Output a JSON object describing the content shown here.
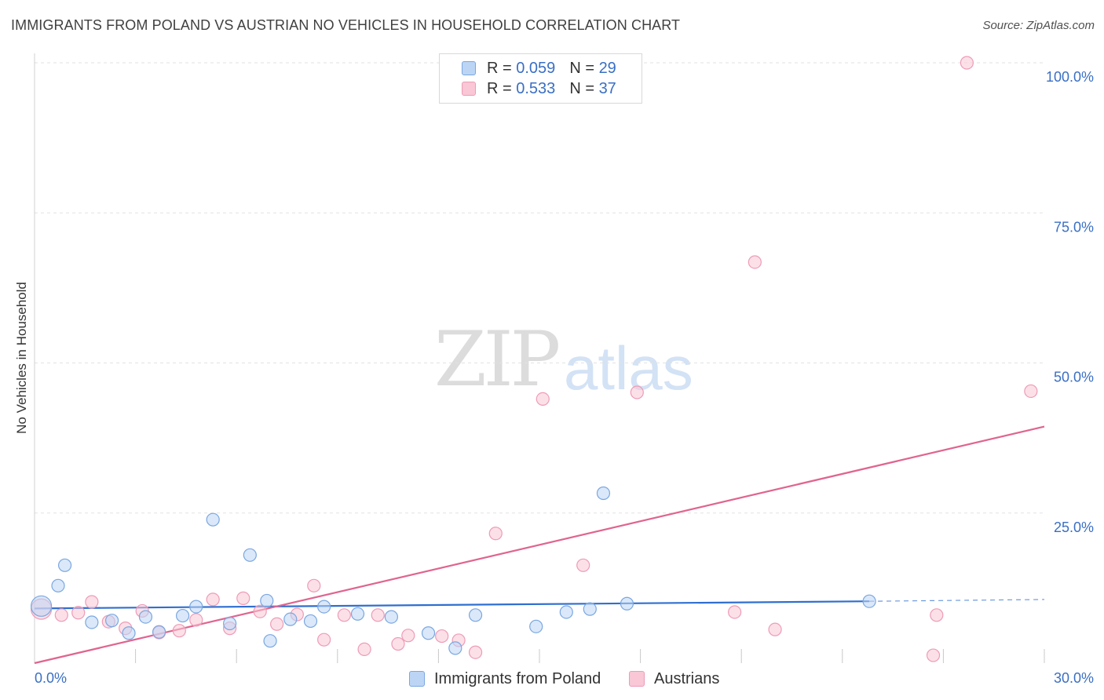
{
  "title": "IMMIGRANTS FROM POLAND VS AUSTRIAN NO VEHICLES IN HOUSEHOLD CORRELATION CHART",
  "source": "Source: ZipAtlas.com",
  "watermark": {
    "zip": "ZIP",
    "atlas": "atlas"
  },
  "legend_top": [
    {
      "r_label": "R =",
      "r_value": "0.059",
      "n_label": "N =",
      "n_value": "29"
    },
    {
      "r_label": "R =",
      "r_value": "0.533",
      "n_label": "N =",
      "n_value": "37"
    }
  ],
  "legend_bottom": [
    "Immigrants from Poland",
    "Austrians"
  ],
  "colors": {
    "poland_fill": "#bcd5f5",
    "poland_stroke": "#7aa7e0",
    "poland_line": "#2f6fd0",
    "austria_fill": "#f9c7d6",
    "austria_stroke": "#ee9bb6",
    "austria_line": "#e0648f",
    "tick_label": "#3a6fc4",
    "grid": "#e2e2e2"
  },
  "chart_data": {
    "type": "scatter",
    "title": "IMMIGRANTS FROM POLAND VS AUSTRIAN NO VEHICLES IN HOUSEHOLD CORRELATION CHART",
    "xlabel": "",
    "ylabel": "No Vehicles in Household",
    "xlim": [
      0,
      30
    ],
    "ylim": [
      0,
      100
    ],
    "x_tick_labels": [
      "0.0%",
      "30.0%"
    ],
    "y_ticks": [
      25,
      50,
      75,
      100
    ],
    "y_tick_labels": [
      "25.0%",
      "50.0%",
      "75.0%",
      "100.0%"
    ],
    "grid": true,
    "legend_position": "top-center",
    "series": [
      {
        "name": "Immigrants from Poland",
        "color": "#bcd5f5",
        "points": [
          [
            0.2,
            9.5
          ],
          [
            0.7,
            12.9
          ],
          [
            0.9,
            16.3
          ],
          [
            1.7,
            6.8
          ],
          [
            2.3,
            7.1
          ],
          [
            2.8,
            5.0
          ],
          [
            3.3,
            7.7
          ],
          [
            3.7,
            5.2
          ],
          [
            4.4,
            7.9
          ],
          [
            4.8,
            9.4
          ],
          [
            5.3,
            23.9
          ],
          [
            5.8,
            6.6
          ],
          [
            6.4,
            18.0
          ],
          [
            6.9,
            10.4
          ],
          [
            7.0,
            3.7
          ],
          [
            7.6,
            7.3
          ],
          [
            8.2,
            7.0
          ],
          [
            8.6,
            9.4
          ],
          [
            9.6,
            8.2
          ],
          [
            10.6,
            7.7
          ],
          [
            11.7,
            5.0
          ],
          [
            12.5,
            2.5
          ],
          [
            13.1,
            8.0
          ],
          [
            14.9,
            6.1
          ],
          [
            15.8,
            8.5
          ],
          [
            16.5,
            9.0
          ],
          [
            16.9,
            28.3
          ],
          [
            17.6,
            9.9
          ],
          [
            24.8,
            10.3
          ]
        ],
        "trend": {
          "x": [
            0,
            24.8
          ],
          "y": [
            9.1,
            10.3
          ],
          "dashed_extension_to": [
            30,
            10.6
          ]
        }
      },
      {
        "name": "Austrians",
        "color": "#f9c7d6",
        "points": [
          [
            0.2,
            9.0
          ],
          [
            0.8,
            8.0
          ],
          [
            1.3,
            8.4
          ],
          [
            1.7,
            10.2
          ],
          [
            2.2,
            6.9
          ],
          [
            2.7,
            5.8
          ],
          [
            3.2,
            8.7
          ],
          [
            3.7,
            5.1
          ],
          [
            4.3,
            5.4
          ],
          [
            4.8,
            7.2
          ],
          [
            5.3,
            10.6
          ],
          [
            5.8,
            5.8
          ],
          [
            6.2,
            10.8
          ],
          [
            6.7,
            8.6
          ],
          [
            7.2,
            6.5
          ],
          [
            7.8,
            8.1
          ],
          [
            8.3,
            12.9
          ],
          [
            8.6,
            3.9
          ],
          [
            9.2,
            8.0
          ],
          [
            9.8,
            2.3
          ],
          [
            10.2,
            8.0
          ],
          [
            10.8,
            3.2
          ],
          [
            11.1,
            4.6
          ],
          [
            12.1,
            4.5
          ],
          [
            12.6,
            3.8
          ],
          [
            13.1,
            1.8
          ],
          [
            13.7,
            21.6
          ],
          [
            15.1,
            44.0
          ],
          [
            16.3,
            16.3
          ],
          [
            17.9,
            45.1
          ],
          [
            20.8,
            8.5
          ],
          [
            21.4,
            66.8
          ],
          [
            22.0,
            5.6
          ],
          [
            26.7,
            1.3
          ],
          [
            26.8,
            8.0
          ],
          [
            27.7,
            100.0
          ],
          [
            29.6,
            45.3
          ]
        ],
        "trend": {
          "x": [
            0,
            30
          ],
          "y": [
            0,
            39.4
          ]
        }
      }
    ]
  }
}
